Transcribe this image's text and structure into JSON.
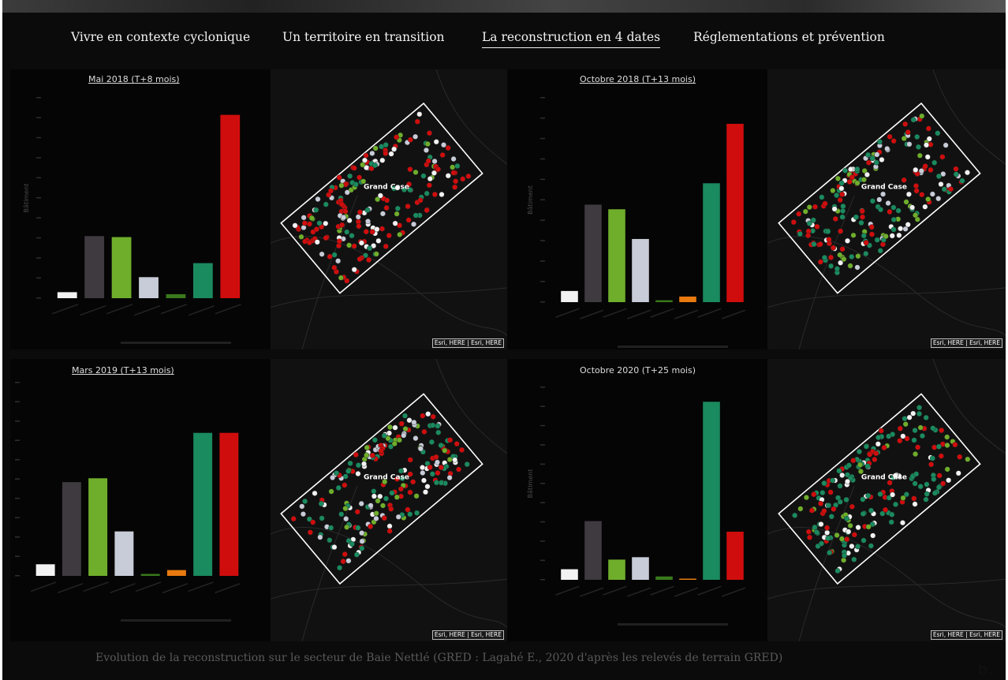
{
  "nav": {
    "items": [
      {
        "label": "Vivre en contexte cyclonique"
      },
      {
        "label": "Un territoire en transition"
      },
      {
        "label": "La reconstruction en 4 dates"
      },
      {
        "label": "Réglementations et prévention"
      }
    ],
    "active_index": 2
  },
  "map": {
    "place_label": "Grand Case",
    "attribution": "Esri, HERE | Esri, HERE"
  },
  "colors": {
    "background": "#0b0b0b",
    "white": "#f2f2f2",
    "dark_grey": "#3e3a3f",
    "light_green": "#6fae2b",
    "light_grey": "#c8ccd8",
    "dark_green": "#3a7a1c",
    "orange": "#e87a10",
    "teal_green": "#1a8a5f",
    "red": "#d00d0d"
  },
  "chart_data": [
    {
      "type": "bar",
      "title": "Mai 2018 (T+8 mois)",
      "ylabel": "Bâtiment",
      "values": [
        6,
        62,
        61,
        21,
        4,
        35,
        183
      ],
      "ylim": [
        0,
        200
      ]
    },
    {
      "type": "bar",
      "title": "Octobre 2018 (T+13 mois)",
      "ylabel": "Bâtiment",
      "values": [
        12,
        105,
        100,
        68,
        2,
        6,
        128,
        192
      ],
      "ylim": [
        0,
        220
      ]
    },
    {
      "type": "bar",
      "title": "Mars 2019 (T+13 mois)",
      "ylabel": "Bâtiment",
      "values": [
        12,
        97,
        101,
        46,
        2,
        6,
        148,
        148
      ],
      "ylim": [
        0,
        200
      ]
    },
    {
      "type": "bar",
      "title": "Octobre 2020 (T+25 mois)",
      "ylabel": "Bâtiment",
      "values": [
        22,
        122,
        42,
        47,
        7,
        2,
        370,
        100
      ],
      "ylim": [
        0,
        400
      ]
    }
  ],
  "panels": [
    {
      "title": "Mai 2018 (T+8 mois)"
    },
    {
      "title": "Octobre 2018 (T+13 mois)"
    },
    {
      "title": "Mars 2019 (T+13 mois)"
    },
    {
      "title": "Octobre 2020 (T+25 mois)"
    }
  ],
  "caption": "Evolution de la reconstruction sur le secteur de Baie Nettlé (GRED : Lagahé E., 2020 d'après les relevés de terrain GRED)",
  "corner_label": "b."
}
